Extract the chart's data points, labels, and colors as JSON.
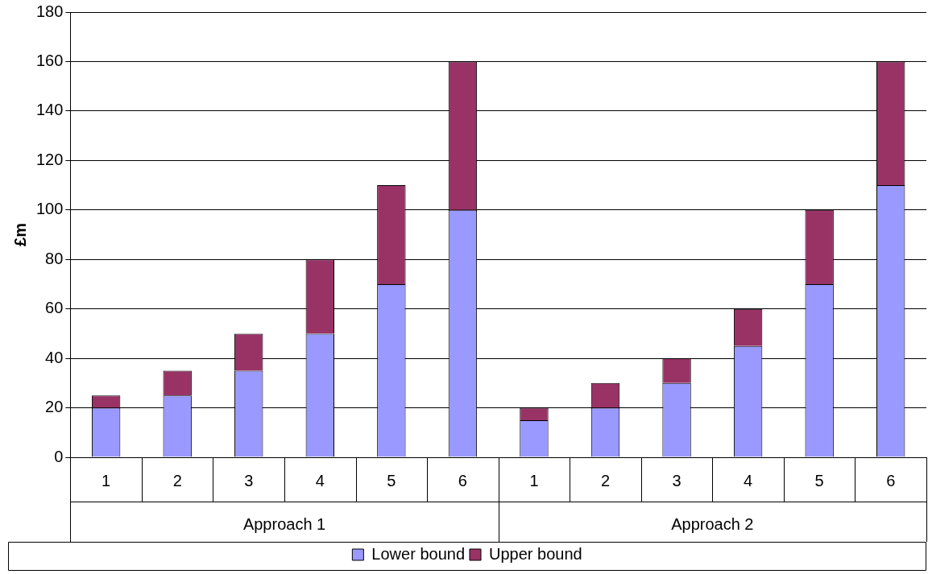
{
  "chart_data": {
    "type": "bar",
    "ylabel": "£m",
    "stacked": true,
    "grid": "y",
    "legend": "bottom",
    "categories": [
      "1",
      "2",
      "3",
      "4",
      "5",
      "6",
      "1",
      "2",
      "3",
      "4",
      "5",
      "6"
    ],
    "annotations": [
      "Approach 1",
      "Approach 2"
    ],
    "ylim": [
      0,
      180
    ],
    "yticks": [
      0,
      20,
      40,
      60,
      80,
      100,
      120,
      140,
      160,
      180
    ],
    "series": [
      {
        "name": "Lower bound",
        "color": "#9999ff",
        "values": [
          20,
          25,
          35,
          50,
          70,
          100,
          15,
          20,
          30,
          45,
          70,
          110
        ]
      },
      {
        "name": "Upper bound",
        "color": "#993366",
        "values": [
          5,
          10,
          15,
          30,
          40,
          60,
          5,
          10,
          10,
          15,
          30,
          50
        ]
      }
    ]
  }
}
